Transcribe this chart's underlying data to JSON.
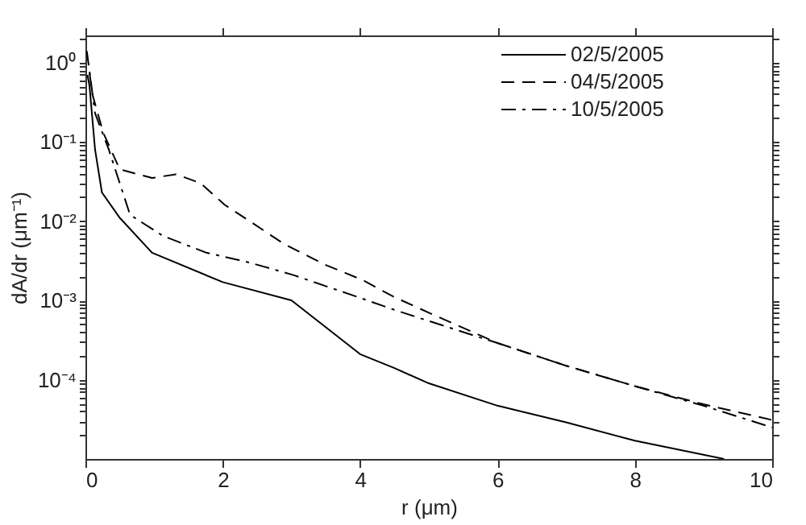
{
  "chart_data": {
    "type": "line",
    "xlabel": "r (μm)",
    "ylabel": "dA/dr (μm⁻¹)",
    "log": "y",
    "xlim": [
      0,
      10
    ],
    "xticks": [
      0,
      2,
      4,
      6,
      8,
      10
    ],
    "ylim": [
      1e-05,
      2.2
    ],
    "yticks": [
      {
        "value": 1,
        "label": "10⁰"
      },
      {
        "value": 0.1,
        "label": "10⁻¹"
      },
      {
        "value": 0.01,
        "label": "10⁻²"
      },
      {
        "value": 0.001,
        "label": "10⁻³"
      },
      {
        "value": 0.0001,
        "label": "10⁻⁴"
      },
      {
        "value": 2,
        "label": null
      },
      {
        "value": 0.9,
        "label": null
      },
      {
        "value": 0.8,
        "label": null
      },
      {
        "value": 0.7,
        "label": null
      },
      {
        "value": 0.6,
        "label": null
      },
      {
        "value": 0.5,
        "label": null
      },
      {
        "value": 0.4,
        "label": null
      },
      {
        "value": 0.3,
        "label": null
      },
      {
        "value": 0.2,
        "label": null
      },
      {
        "value": 0.09,
        "label": null
      },
      {
        "value": 0.08,
        "label": null
      },
      {
        "value": 0.07,
        "label": null
      },
      {
        "value": 0.06,
        "label": null
      },
      {
        "value": 0.05,
        "label": null
      },
      {
        "value": 0.04,
        "label": null
      },
      {
        "value": 0.03,
        "label": null
      },
      {
        "value": 0.02,
        "label": null
      },
      {
        "value": 0.009,
        "label": null
      },
      {
        "value": 0.008,
        "label": null
      },
      {
        "value": 0.007,
        "label": null
      },
      {
        "value": 0.006,
        "label": null
      },
      {
        "value": 0.005,
        "label": null
      },
      {
        "value": 0.004,
        "label": null
      },
      {
        "value": 0.003,
        "label": null
      },
      {
        "value": 0.002,
        "label": null
      },
      {
        "value": 0.0009,
        "label": null
      },
      {
        "value": 0.0008,
        "label": null
      },
      {
        "value": 0.0007,
        "label": null
      },
      {
        "value": 0.0006,
        "label": null
      },
      {
        "value": 0.0005,
        "label": null
      },
      {
        "value": 0.0004,
        "label": null
      },
      {
        "value": 0.0003,
        "label": null
      },
      {
        "value": 0.0002,
        "label": null
      },
      {
        "value": 9e-05,
        "label": null
      },
      {
        "value": 8e-05,
        "label": null
      },
      {
        "value": 7e-05,
        "label": null
      },
      {
        "value": 6e-05,
        "label": null
      },
      {
        "value": 5e-05,
        "label": null
      },
      {
        "value": 4e-05,
        "label": null
      },
      {
        "value": 3e-05,
        "label": null
      },
      {
        "value": 2e-05,
        "label": null
      }
    ],
    "grid": false,
    "legend": "top right",
    "marker": "none",
    "series": [
      {
        "name": "02/5/2005",
        "color": "#000000",
        "line_style": "solid",
        "x": [
          0.03,
          0.06,
          0.1,
          0.14,
          0.24,
          0.5,
          0.97,
          2,
          3,
          4,
          4.5,
          5,
          6,
          7,
          8,
          9.3
        ],
        "values": [
          0.7,
          0.5,
          0.2,
          0.08,
          0.023,
          0.011,
          0.004,
          0.0017,
          0.001,
          0.00021,
          0.00014,
          9e-05,
          4.7e-05,
          2.9e-05,
          1.7e-05,
          1e-05
        ]
      },
      {
        "name": "04/5/2005",
        "color": "#000000",
        "line_style": "dashed",
        "x": [
          0.06,
          0.1,
          0.26,
          0.5,
          0.97,
          1.32,
          1.68,
          2.03,
          2.39,
          2.9,
          3.5,
          4.04,
          4.5,
          5,
          6,
          7,
          8,
          9,
          10
        ],
        "values": [
          0.74,
          0.4,
          0.13,
          0.045,
          0.035,
          0.039,
          0.03,
          0.016,
          0.01,
          0.0051,
          0.0028,
          0.0018,
          0.0011,
          0.0007,
          0.00029,
          0.00015,
          8.3e-05,
          4.9e-05,
          3.1e-05
        ]
      },
      {
        "name": "10/5/2005",
        "color": "#000000",
        "line_style": "dashdot",
        "x": [
          0.02,
          0.14,
          0.34,
          0.65,
          1.13,
          1.76,
          2.39,
          3.02,
          3.97,
          4.5,
          5,
          6,
          7,
          8,
          9,
          10
        ],
        "values": [
          1.4,
          0.23,
          0.08,
          0.012,
          0.0065,
          0.004,
          0.003,
          0.0021,
          0.0011,
          0.00076,
          0.00055,
          0.00029,
          0.00015,
          8.3e-05,
          4.7e-05,
          2.5e-05
        ]
      }
    ]
  }
}
